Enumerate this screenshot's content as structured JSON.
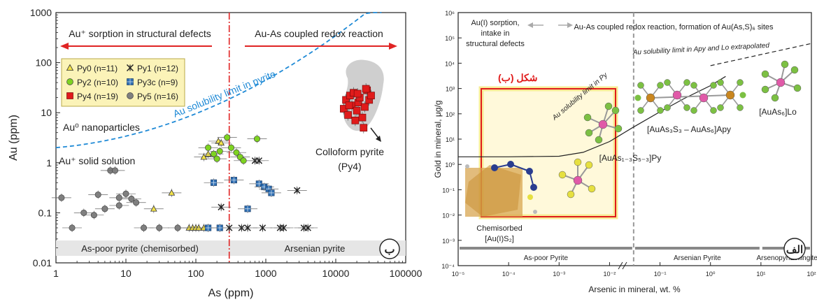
{
  "chart_data": [
    {
      "panel": "right",
      "type": "scatter",
      "title": "",
      "xlabel": "As (ppm)",
      "ylabel": "Au (ppm)",
      "xscale": "log",
      "yscale": "log",
      "xlim": [
        1,
        100000
      ],
      "ylim": [
        0.01,
        1000
      ],
      "x_ticks": [
        "1",
        "10",
        "100",
        "1000",
        "10000",
        "100000"
      ],
      "y_ticks": [
        "0.01",
        "0.1",
        "1",
        "10",
        "100",
        "1000"
      ],
      "legend_position": "top-left",
      "threshold_line_as": 300,
      "annotations": {
        "sorption": "Au⁺ sorption in structural defects",
        "redox": "Au-As coupled redox reaction",
        "solubility": "Au solubility limit in pyrite",
        "nanoparticles": "Au⁰ nanoparticles",
        "solid_solution": "Au⁺ solid solution",
        "colloform": "Colloform pyrite",
        "colloform_sub": "(Py4)",
        "as_poor": "As-poor pyrite (chemisorbed)",
        "arsenian": "Arsenian pyrite",
        "panel_letter": "ب"
      },
      "series": [
        {
          "name": "Py0 (n=11)",
          "marker": "triangle",
          "color": "#f3e34a",
          "points": [
            [
              130,
              1.3
            ],
            [
              150,
              1.5
            ],
            [
              210,
              2.7
            ],
            [
              230,
              2.5
            ],
            [
              45,
              0.25
            ],
            [
              25,
              0.12
            ],
            [
              80,
              0.05
            ],
            [
              90,
              0.05
            ],
            [
              100,
              0.05
            ],
            [
              110,
              0.05
            ],
            [
              130,
              0.05
            ]
          ]
        },
        {
          "name": "Py1 (n=12)",
          "marker": "x",
          "color": "#222222",
          "points": [
            [
              700,
              1.1
            ],
            [
              800,
              1.1
            ],
            [
              230,
              0.13
            ],
            [
              300,
              0.05
            ],
            [
              450,
              0.05
            ],
            [
              550,
              0.05
            ],
            [
              900,
              0.05
            ],
            [
              1600,
              0.05
            ],
            [
              1800,
              0.05
            ],
            [
              2800,
              0.28
            ],
            [
              3500,
              0.05
            ],
            [
              4000,
              0.05
            ]
          ]
        },
        {
          "name": "Py2 (n=10)",
          "marker": "circle",
          "color": "#7ed321",
          "points": [
            [
              150,
              2.0
            ],
            [
              180,
              1.5
            ],
            [
              200,
              1.2
            ],
            [
              220,
              1.7
            ],
            [
              280,
              3.2
            ],
            [
              320,
              2.0
            ],
            [
              380,
              1.6
            ],
            [
              430,
              1.3
            ],
            [
              480,
              1.1
            ],
            [
              750,
              3.0
            ]
          ]
        },
        {
          "name": "Py3c (n=9)",
          "marker": "square-grid",
          "color": "#2f6fb3",
          "points": [
            [
              180,
              0.4
            ],
            [
              350,
              0.45
            ],
            [
              220,
              0.05
            ],
            [
              150,
              0.05
            ],
            [
              550,
              0.12
            ],
            [
              800,
              0.38
            ],
            [
              950,
              0.33
            ],
            [
              1100,
              0.3
            ],
            [
              1200,
              0.25
            ]
          ]
        },
        {
          "name": "Py4 (n=19)",
          "marker": "square",
          "color": "#e01b1b",
          "points": [
            [
              13000,
              12
            ],
            [
              14000,
              18
            ],
            [
              15000,
              9
            ],
            [
              16000,
              22
            ],
            [
              17000,
              14
            ],
            [
              18000,
              25
            ],
            [
              19000,
              7
            ],
            [
              20000,
              11
            ],
            [
              21000,
              16
            ],
            [
              22000,
              20
            ],
            [
              24000,
              8
            ],
            [
              26000,
              13
            ],
            [
              28000,
              28
            ],
            [
              30000,
              18
            ],
            [
              32000,
              22
            ],
            [
              25000,
              5
            ],
            [
              15500,
              14
            ],
            [
              20500,
              24
            ],
            [
              27000,
              30
            ]
          ]
        },
        {
          "name": "Py5 (n=16)",
          "marker": "circle",
          "color": "#7f7f7f",
          "points": [
            [
              1.2,
              0.2
            ],
            [
              1.7,
              0.05
            ],
            [
              2.5,
              0.1
            ],
            [
              3.5,
              0.09
            ],
            [
              4,
              0.23
            ],
            [
              5,
              0.12
            ],
            [
              6,
              0.7
            ],
            [
              7,
              0.7
            ],
            [
              8,
              0.2
            ],
            [
              10,
              0.24
            ],
            [
              12,
              0.19
            ],
            [
              14,
              0.16
            ],
            [
              18,
              0.05
            ],
            [
              30,
              0.05
            ],
            [
              55,
              0.05
            ],
            [
              8,
              0.14
            ]
          ]
        }
      ]
    },
    {
      "panel": "left",
      "type": "line",
      "title": "",
      "xlabel": "Arsenic in mineral, wt. %",
      "ylabel": "Gold in mineral, μg/g",
      "xscale": "log",
      "yscale": "log",
      "xlim": [
        1e-05,
        100
      ],
      "ylim": [
        0.0001,
        1000000
      ],
      "x_ticks": [
        "10⁻⁵",
        "10⁻⁴",
        "10⁻³",
        "10⁻²",
        "10⁻¹",
        "10⁰",
        "10¹",
        "10²"
      ],
      "y_ticks": [
        "10⁻⁴",
        "10⁻³",
        "10⁻²",
        "10⁻¹",
        "10⁰",
        "10¹",
        "10²",
        "10³",
        "10⁴",
        "10⁵",
        "10⁶"
      ],
      "boundary_line_as": 0.03,
      "solubility_curve": {
        "label": "Au solubility limit in Py",
        "points": [
          [
            1e-05,
            2
          ],
          [
            0.0001,
            2
          ],
          [
            0.001,
            2.1
          ],
          [
            0.003,
            3
          ],
          [
            0.01,
            8
          ],
          [
            0.03,
            30
          ],
          [
            0.1,
            120
          ],
          [
            0.3,
            400
          ],
          [
            1,
            1300
          ],
          [
            2,
            3000
          ]
        ]
      },
      "extrapolated_line": {
        "label": "Au solubility limit in Apy and Lo extrapolated",
        "points": [
          [
            1,
            8000
          ],
          [
            100,
            60000
          ]
        ]
      },
      "annotations": {
        "left_header": "Au(I) sorption, intake in structural defects",
        "right_header": "Au-As coupled redox reaction, formation of Au(As,S)₆ sites",
        "box_label": "شکل (ب)",
        "chemisorbed": "Chemisorbed",
        "chemisorbed_formula": "[Au(I)S₂]",
        "py_complex": "[AuAs₁₋₃S₅₋₃]Py",
        "apy_complex": "[AuAs₃S₃ – AuAs₆]Apy",
        "lo_complex": "[AuAs₆]Lo",
        "panel_letter": "الف"
      },
      "mineral_ranges": [
        {
          "name": "As-poor Pyrite",
          "range": [
            1e-05,
            0.03
          ]
        },
        {
          "name": "Arsenian Pyrite",
          "range": [
            0.03,
            10
          ]
        },
        {
          "name": "Arsenopyrite",
          "range": [
            10,
            40
          ]
        },
        {
          "name": "Löllingite",
          "range": [
            50,
            100
          ]
        }
      ]
    }
  ],
  "legend": [
    {
      "label": "Py0 (n=11)",
      "marker": "triangle",
      "color": "#f3e34a"
    },
    {
      "label": "Py1 (n=12)",
      "marker": "x",
      "color": "#222222"
    },
    {
      "label": "Py2 (n=10)",
      "marker": "circle",
      "color": "#7ed321"
    },
    {
      "label": "Py3c (n=9)",
      "marker": "square-grid",
      "color": "#2f6fb3"
    },
    {
      "label": "Py4 (n=19)",
      "marker": "square",
      "color": "#e01b1b"
    },
    {
      "label": "Py5 (n=16)",
      "marker": "circle",
      "color": "#7f7f7f"
    }
  ],
  "colors": {
    "red_line": "#e02424",
    "blue_dashed": "#1f8ad6",
    "box_yellow": "#f7e98a",
    "box_red": "#e01b1b",
    "gray_band": "#e6e6e6"
  }
}
